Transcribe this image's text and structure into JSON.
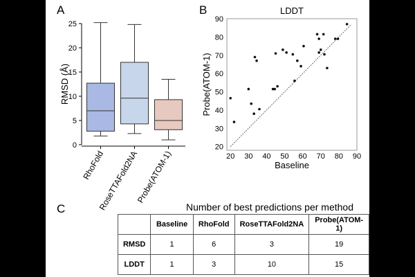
{
  "panels": {
    "a": "A",
    "b": "B",
    "c": "C"
  },
  "chart_data": [
    {
      "type": "box",
      "title": "",
      "xlabel": "",
      "ylabel": "RMSD (Å)",
      "ylim": [
        0,
        25
      ],
      "yticks": [
        0,
        5,
        10,
        15,
        20,
        25
      ],
      "categories": [
        "RhoFold",
        "RoseTTAFold2NA",
        "Probe(ATOM-1)"
      ],
      "colors": [
        "#a9b9e4",
        "#c8d6ec",
        "#e8c9bf"
      ],
      "boxes": [
        {
          "name": "RhoFold",
          "whisker_low": 1.8,
          "q1": 2.8,
          "median": 7.0,
          "q3": 12.7,
          "whisker_high": 25.2
        },
        {
          "name": "RoseTTAFold2NA",
          "whisker_low": 2.3,
          "q1": 4.3,
          "median": 9.6,
          "q3": 17.0,
          "whisker_high": 24.8
        },
        {
          "name": "Probe(ATOM-1)",
          "whisker_low": 1.0,
          "q1": 3.1,
          "median": 5.0,
          "q3": 9.3,
          "whisker_high": 13.5
        }
      ]
    },
    {
      "type": "scatter",
      "title": "LDDT",
      "xlabel": "Baseline",
      "ylabel": "Probe(ATOM-1)",
      "xlim": [
        18,
        90
      ],
      "ylim": [
        18,
        90
      ],
      "xticks": [
        20,
        30,
        40,
        50,
        60,
        70,
        80,
        90
      ],
      "yticks": [
        20,
        30,
        40,
        50,
        60,
        70,
        80,
        90
      ],
      "diagonal": true,
      "points": [
        {
          "x": 20,
          "y": 46.5
        },
        {
          "x": 22,
          "y": 33.5
        },
        {
          "x": 30,
          "y": 51.5
        },
        {
          "x": 31.5,
          "y": 43.5
        },
        {
          "x": 33,
          "y": 38
        },
        {
          "x": 33.5,
          "y": 69
        },
        {
          "x": 34.5,
          "y": 67
        },
        {
          "x": 36,
          "y": 40.5
        },
        {
          "x": 43.5,
          "y": 51.5
        },
        {
          "x": 44.5,
          "y": 51.5
        },
        {
          "x": 45,
          "y": 71
        },
        {
          "x": 46,
          "y": 53
        },
        {
          "x": 49,
          "y": 73
        },
        {
          "x": 51,
          "y": 71.5
        },
        {
          "x": 54.5,
          "y": 70.5
        },
        {
          "x": 55.5,
          "y": 56
        },
        {
          "x": 57,
          "y": 67
        },
        {
          "x": 59,
          "y": 64
        },
        {
          "x": 60.5,
          "y": 75
        },
        {
          "x": 68,
          "y": 81.5
        },
        {
          "x": 69,
          "y": 79
        },
        {
          "x": 69,
          "y": 71.5
        },
        {
          "x": 70,
          "y": 73
        },
        {
          "x": 71.5,
          "y": 81.5
        },
        {
          "x": 72,
          "y": 70.5
        },
        {
          "x": 73.5,
          "y": 63
        },
        {
          "x": 78,
          "y": 79
        },
        {
          "x": 79.5,
          "y": 79
        },
        {
          "x": 84.5,
          "y": 87
        }
      ]
    },
    {
      "type": "table",
      "title": "Number of best predictions per method",
      "columns": [
        "",
        "Baseline",
        "RhoFold",
        "RoseTTAFold2NA",
        "Probe(ATOM-1)"
      ],
      "rows": [
        {
          "label": "RMSD",
          "values": [
            "1",
            "6",
            "3",
            "19"
          ]
        },
        {
          "label": "LDDT",
          "values": [
            "1",
            "3",
            "10",
            "15"
          ]
        }
      ]
    }
  ]
}
